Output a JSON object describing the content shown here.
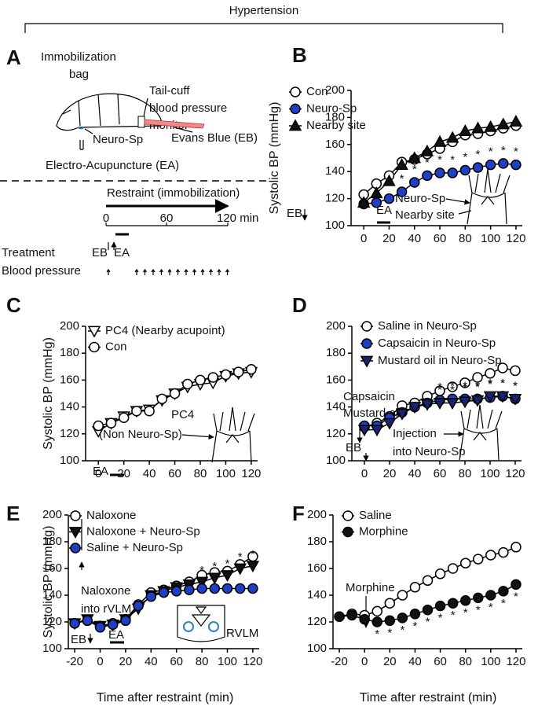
{
  "header": {
    "title": "Hypertension"
  },
  "panel_a": {
    "label": "A",
    "bag": [
      "Immobilization",
      "bag"
    ],
    "monitor": [
      "Tail-cuff",
      "blood pressure",
      "monitor"
    ],
    "neuro_sp": "Neuro-Sp",
    "evans_blue": "Evans Blue (EB)",
    "ea": "Electro-Acupuncture (EA)",
    "restraint": "Restraint (immobilization)",
    "timeline": [
      "0",
      "60",
      "120 min"
    ],
    "treatment": "Treatment",
    "eb": "EB",
    "ea_short": "EA",
    "blood_pressure": "Blood pressure",
    "accent": "#2a88c8"
  },
  "chart_data": [
    {
      "type": "line",
      "panel": "B",
      "ylabel": "Systolic BP (mmHg)",
      "x": [
        0,
        10,
        20,
        30,
        40,
        50,
        60,
        70,
        80,
        90,
        100,
        110,
        120
      ],
      "xlim": [
        -10,
        125
      ],
      "ylim": [
        100,
        200
      ],
      "xticks": [
        0,
        20,
        40,
        60,
        80,
        100,
        120
      ],
      "yticks": [
        100,
        120,
        140,
        160,
        180,
        200
      ],
      "series": [
        {
          "name": "Con",
          "marker": "circle-open",
          "color": "#ffffff",
          "values": [
            123,
            131,
            137,
            147,
            149,
            153,
            157,
            162,
            167,
            168,
            170,
            172,
            174
          ]
        },
        {
          "name": "Neuro-Sp",
          "marker": "circle",
          "color": "#1f3fc4",
          "values": [
            116,
            117,
            120,
            125,
            132,
            137,
            139,
            139,
            141,
            143,
            145,
            146,
            145
          ],
          "sig": {
            "label": "*",
            "x": [
              30,
              40,
              50,
              60,
              70,
              80,
              90,
              100,
              110,
              120
            ]
          }
        },
        {
          "name": "Nearby site",
          "marker": "triangle",
          "color": "#111111",
          "values": [
            117,
            124,
            133,
            145,
            150,
            155,
            162,
            165,
            170,
            172,
            173,
            175,
            177
          ]
        }
      ],
      "annotations": [
        {
          "text": "EB",
          "color": "#2a88c8"
        },
        {
          "text": "EA",
          "color": "#111111"
        },
        {
          "text": "Neuro-Sp",
          "color": "#111111"
        },
        {
          "text": "Nearby site",
          "color": "#111111"
        }
      ]
    },
    {
      "type": "line",
      "panel": "C",
      "ylabel": "Systolic BP (mmHg)",
      "x": [
        0,
        10,
        20,
        30,
        40,
        50,
        60,
        70,
        80,
        90,
        100,
        110,
        120
      ],
      "xlim": [
        -10,
        125
      ],
      "ylim": [
        100,
        200
      ],
      "xticks": [
        0,
        20,
        40,
        60,
        80,
        100,
        120
      ],
      "yticks": [
        100,
        120,
        140,
        160,
        180,
        200
      ],
      "series": [
        {
          "name": "PC4 (Nearby acupoint)",
          "marker": "triangle-down-open",
          "color": "#ffffff",
          "values": [
            122,
            128,
            133,
            137,
            138,
            145,
            150,
            155,
            157,
            158,
            163,
            165,
            166
          ]
        },
        {
          "name": "Con",
          "marker": "circle-open",
          "color": "#ffffff",
          "values": [
            126,
            128,
            132,
            137,
            137,
            146,
            150,
            157,
            160,
            162,
            164,
            166,
            168
          ]
        }
      ],
      "annotations": [
        {
          "text": "PC4",
          "color": "#111111"
        },
        {
          "text": "(Non Neuro-Sp)",
          "color": "#111111"
        },
        {
          "text": "EA",
          "color": "#111111"
        }
      ]
    },
    {
      "type": "line",
      "panel": "D",
      "x": [
        0,
        10,
        20,
        30,
        40,
        50,
        60,
        70,
        80,
        90,
        100,
        110,
        120
      ],
      "xlim": [
        -10,
        125
      ],
      "ylim": [
        100,
        200
      ],
      "xticks": [
        0,
        20,
        40,
        60,
        80,
        100,
        120
      ],
      "yticks": [
        100,
        120,
        140,
        160,
        180,
        200
      ],
      "series": [
        {
          "name": "Saline in Neuro-Sp",
          "marker": "circle-open",
          "color": "#ffffff",
          "values": [
            125,
            128,
            133,
            141,
            143,
            148,
            152,
            155,
            158,
            162,
            165,
            169,
            167
          ]
        },
        {
          "name": "Capsaicin in Neuro-Sp",
          "marker": "circle",
          "color": "#1f3fc4",
          "values": [
            126,
            126,
            132,
            136,
            140,
            143,
            145,
            146,
            146,
            146,
            147,
            148,
            146
          ],
          "sig": {
            "label": "*",
            "x": [
              60,
              70,
              80,
              90,
              100,
              110,
              120
            ]
          }
        },
        {
          "name": "Mustard oil in Neuro-Sp",
          "marker": "triangle-down",
          "color": "#1a2370",
          "values": [
            123,
            123,
            128,
            135,
            140,
            142,
            143,
            143,
            144,
            145,
            148,
            148,
            146
          ],
          "sig": {
            "label": "*",
            "x": [
              60,
              70,
              80,
              90,
              100,
              110,
              120
            ]
          }
        }
      ],
      "annotations": [
        {
          "text": "Capsaicin",
          "color": "#111111"
        },
        {
          "text": "Mustard oil",
          "color": "#111111"
        },
        {
          "text": "Injection",
          "color": "#111111"
        },
        {
          "text": "into Neuro-Sp",
          "color": "#111111"
        },
        {
          "text": "EB",
          "color": "#2a88c8"
        }
      ]
    },
    {
      "type": "line",
      "panel": "E",
      "ylabel": "Systolic BP (mmHg)",
      "xlabel": "Time after restraint (min)",
      "x": [
        -20,
        -10,
        0,
        10,
        20,
        30,
        40,
        50,
        60,
        70,
        80,
        90,
        100,
        110,
        120
      ],
      "xlim": [
        -25,
        125
      ],
      "ylim": [
        100,
        200
      ],
      "xticks": [
        -20,
        0,
        20,
        40,
        60,
        80,
        100,
        120
      ],
      "yticks": [
        100,
        120,
        140,
        160,
        180,
        200
      ],
      "series": [
        {
          "name": "Naloxone",
          "marker": "circle-open",
          "color": "#ffffff",
          "values": [
            119,
            121,
            117,
            119,
            122,
            133,
            142,
            144,
            147,
            150,
            155,
            157,
            158,
            163,
            169
          ]
        },
        {
          "name": "Naloxone + Neuro-Sp",
          "marker": "triangle-down",
          "color": "#111111",
          "values": [
            119,
            122,
            117,
            118,
            122,
            130,
            140,
            143,
            146,
            148,
            150,
            153,
            155,
            160,
            162
          ],
          "sig": {
            "label": "*",
            "x": [
              80,
              90,
              100,
              110,
              120
            ]
          }
        },
        {
          "name": "Saline + Neuro-Sp",
          "marker": "circle",
          "color": "#1f3fc4",
          "values": [
            119,
            121,
            116,
            118,
            121,
            132,
            139,
            142,
            143,
            144,
            145,
            145,
            145,
            145,
            145
          ]
        }
      ],
      "annotations": [
        {
          "text": "Naloxone",
          "color": "#111111"
        },
        {
          "text": "into rVLM",
          "color": "#111111"
        },
        {
          "text": "EB",
          "color": "#2a88c8"
        },
        {
          "text": "EA",
          "color": "#111111"
        },
        {
          "text": "RVLM",
          "color": "#111111"
        }
      ]
    },
    {
      "type": "line",
      "panel": "F",
      "xlabel": "Time after restraint (min)",
      "x": [
        -20,
        -10,
        0,
        10,
        20,
        30,
        40,
        50,
        60,
        70,
        80,
        90,
        100,
        110,
        120
      ],
      "xlim": [
        -25,
        125
      ],
      "ylim": [
        100,
        200
      ],
      "xticks": [
        -20,
        0,
        20,
        40,
        60,
        80,
        100,
        120
      ],
      "yticks": [
        100,
        120,
        140,
        160,
        180,
        200
      ],
      "series": [
        {
          "name": "Saline",
          "marker": "circle-open",
          "color": "#ffffff",
          "values": [
            124,
            126,
            125,
            128,
            134,
            140,
            146,
            151,
            156,
            160,
            164,
            167,
            170,
            172,
            176
          ]
        },
        {
          "name": "Morphine",
          "marker": "circle",
          "color": "#111111",
          "values": [
            124,
            125,
            122,
            120,
            121,
            123,
            126,
            129,
            132,
            134,
            136,
            138,
            140,
            143,
            148
          ],
          "sig": {
            "label": "*",
            "x": [
              10,
              20,
              30,
              40,
              50,
              60,
              70,
              80,
              90,
              100,
              110,
              120
            ]
          }
        }
      ],
      "annotations": [
        {
          "text": "Morphine",
          "color": "#111111"
        }
      ]
    }
  ]
}
